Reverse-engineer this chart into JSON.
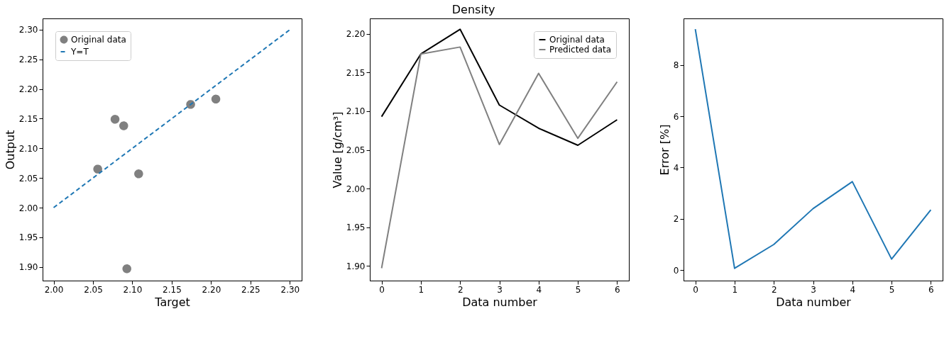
{
  "chart_data": [
    {
      "type": "scatter",
      "xlabel": "Target",
      "ylabel": "Output",
      "xlim": [
        1.986,
        2.315
      ],
      "ylim": [
        1.877,
        2.319
      ],
      "xticks": [
        {
          "value": 2.0,
          "label": "2.00"
        },
        {
          "value": 2.05,
          "label": "2.05"
        },
        {
          "value": 2.1,
          "label": "2.10"
        },
        {
          "value": 2.15,
          "label": "2.15"
        },
        {
          "value": 2.2,
          "label": "2.20"
        },
        {
          "value": 2.25,
          "label": "2.25"
        },
        {
          "value": 2.3,
          "label": "2.30"
        }
      ],
      "yticks": [
        {
          "value": 1.9,
          "label": "1.90"
        },
        {
          "value": 1.95,
          "label": "1.95"
        },
        {
          "value": 2.0,
          "label": "2.00"
        },
        {
          "value": 2.05,
          "label": "2.05"
        },
        {
          "value": 2.1,
          "label": "2.10"
        },
        {
          "value": 2.15,
          "label": "2.15"
        },
        {
          "value": 2.2,
          "label": "2.20"
        },
        {
          "value": 2.25,
          "label": "2.25"
        },
        {
          "value": 2.3,
          "label": "2.30"
        }
      ],
      "grid": false,
      "legend": "top left",
      "series": [
        {
          "name": "Original data",
          "type": "scatter",
          "marker": "circle",
          "color": "#808080",
          "x": [
            2.093,
            2.174,
            2.206,
            2.108,
            2.078,
            2.056,
            2.089
          ],
          "values": [
            1.897,
            2.174,
            2.183,
            2.057,
            2.149,
            2.065,
            2.138
          ]
        },
        {
          "name": "Y=T",
          "type": "line",
          "line_style": "dashed",
          "color": "#1f77b4",
          "x": [
            2.0,
            2.3
          ],
          "values": [
            2.0,
            2.3
          ]
        }
      ]
    },
    {
      "type": "line",
      "title": "Density",
      "xlabel": "Data number",
      "ylabel": "Value [g/cm³]",
      "xlim": [
        -0.3,
        6.3
      ],
      "ylim": [
        1.881,
        2.22
      ],
      "x": [
        0,
        1,
        2,
        3,
        4,
        5,
        6
      ],
      "xticks": [
        0,
        1,
        2,
        3,
        4,
        5,
        6
      ],
      "yticks": [
        {
          "value": 1.9,
          "label": "1.90"
        },
        {
          "value": 1.95,
          "label": "1.95"
        },
        {
          "value": 2.0,
          "label": "2.00"
        },
        {
          "value": 2.05,
          "label": "2.05"
        },
        {
          "value": 2.1,
          "label": "2.10"
        },
        {
          "value": 2.15,
          "label": "2.15"
        },
        {
          "value": 2.2,
          "label": "2.20"
        }
      ],
      "grid": false,
      "legend": "top right",
      "series": [
        {
          "name": "Original data",
          "color": "#000000",
          "values": [
            2.093,
            2.174,
            2.206,
            2.108,
            2.078,
            2.056,
            2.089
          ]
        },
        {
          "name": "Predicted data",
          "color": "#808080",
          "values": [
            1.897,
            2.174,
            2.183,
            2.057,
            2.149,
            2.065,
            2.138
          ]
        }
      ]
    },
    {
      "type": "line",
      "xlabel": "Data number",
      "ylabel": "Error [%]",
      "xlim": [
        -0.3,
        6.3
      ],
      "ylim": [
        -0.41,
        9.82
      ],
      "x": [
        0,
        1,
        2,
        3,
        4,
        5,
        6
      ],
      "xticks": [
        0,
        1,
        2,
        3,
        4,
        5,
        6
      ],
      "yticks": [
        0,
        2,
        4,
        6,
        8
      ],
      "grid": false,
      "series": [
        {
          "color": "#1f77b4",
          "values": [
            9.4,
            0.07,
            1.0,
            2.4,
            3.45,
            0.43,
            2.35
          ]
        }
      ]
    }
  ]
}
